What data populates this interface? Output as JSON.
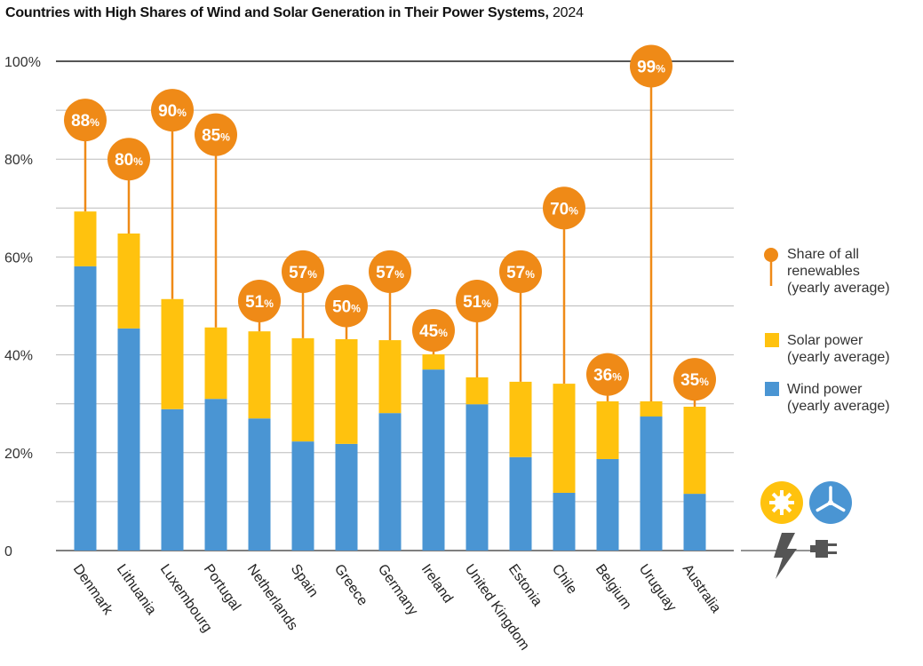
{
  "chart_data": {
    "type": "bar",
    "title": "Countries with High Shares of Wind and Solar Generation in Their Power Systems,",
    "title_year": "2024",
    "categories": [
      "Denmark",
      "Lithuania",
      "Luxembourg",
      "Portugal",
      "Netherlands",
      "Spain",
      "Greece",
      "Germany",
      "Ireland",
      "United Kingdom",
      "Estonia",
      "Chile",
      "Belgium",
      "Uruguay",
      "Australia"
    ],
    "series": [
      {
        "name": "Wind power (yearly average)",
        "color": "#4a95d3",
        "values": [
          58.1,
          45.4,
          28.9,
          31.0,
          27.0,
          22.3,
          21.8,
          28.1,
          37.0,
          29.9,
          19.1,
          11.8,
          18.7,
          27.4,
          11.6
        ]
      },
      {
        "name": "Solar power (yearly average)",
        "color": "#ffc20e",
        "values": [
          11.2,
          19.4,
          22.5,
          14.6,
          17.8,
          21.1,
          21.4,
          14.9,
          3.1,
          5.5,
          15.4,
          22.3,
          11.8,
          3.1,
          17.8
        ]
      }
    ],
    "renewables": {
      "name": "Share of all renewables (yearly average)",
      "color": "#ef8a17",
      "values": [
        88,
        80,
        90,
        85,
        51,
        57,
        50,
        57,
        45,
        51,
        57,
        70,
        36,
        99,
        35
      ],
      "unit": "%"
    },
    "ylim": [
      0,
      100
    ],
    "yticks": [
      0,
      20,
      40,
      60,
      80,
      100
    ],
    "ytick_labels": [
      "0",
      "20%",
      "40%",
      "60%",
      "80%",
      "100%"
    ],
    "legend": {
      "placement": "right",
      "renewables_lines": [
        "Share of all",
        "renewables",
        "(yearly average)"
      ],
      "solar_lines": [
        "Solar power",
        "(yearly average)"
      ],
      "wind_lines": [
        "Wind power",
        "(yearly average)"
      ]
    },
    "stacked": true,
    "grid": true
  }
}
